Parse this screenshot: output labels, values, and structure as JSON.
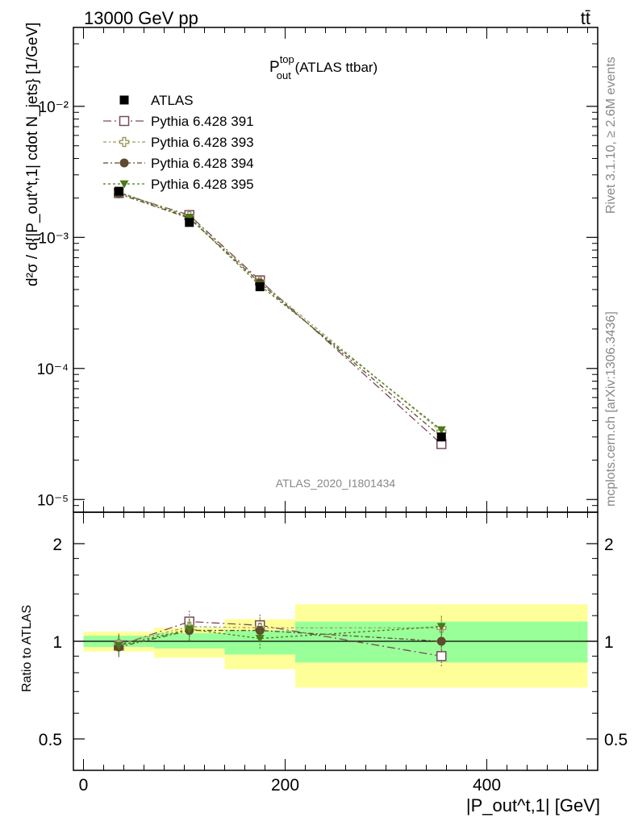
{
  "header": {
    "left": "13000 GeV pp",
    "right": "tt̄"
  },
  "side": {
    "rivet": "Rivet 3.1.10, ≥ 2.6M events",
    "mcplots": "mcplots.cern.ch [arXiv:1306.3436]"
  },
  "main": {
    "title_main": "P",
    "title_sup": "top",
    "title_sub": "out",
    "title_rest": " (ATLAS ttbar)",
    "watermark": "ATLAS_2020_I1801434",
    "ylabel": "d²σ / d{|P_out^t,1| cdot N_jets} [1/GeV]",
    "yticks": [
      "10⁻⁵",
      "10⁻⁴",
      "10⁻³",
      "10⁻²"
    ]
  },
  "ratio": {
    "ylabel": "Ratio to ATLAS",
    "yticks": [
      "0.5",
      "1",
      "2"
    ]
  },
  "xaxis": {
    "label": "|P_out^t,1| [GeV]",
    "ticks": [
      "0",
      "200",
      "400"
    ]
  },
  "legend": [
    {
      "label": "ATLAS",
      "marker": "filled-square",
      "color": "#000000"
    },
    {
      "label": "Pythia 6.428 391",
      "marker": "open-square",
      "color": "#7a4a5a"
    },
    {
      "label": "Pythia 6.428 393",
      "marker": "open-cross",
      "color": "#9c9a5a"
    },
    {
      "label": "Pythia 6.428 394",
      "marker": "filled-circle",
      "color": "#5e4a2e"
    },
    {
      "label": "Pythia 6.428 395",
      "marker": "filled-triangle",
      "color": "#4a7a1a"
    }
  ],
  "chart_data": {
    "type": "scatter",
    "x_bins": [
      [
        0,
        70
      ],
      [
        70,
        140
      ],
      [
        140,
        210
      ],
      [
        210,
        500
      ]
    ],
    "x": [
      35,
      105,
      175,
      355
    ],
    "xlim": [
      -10,
      510
    ],
    "ylim": [
      8e-06,
      0.04
    ],
    "yscale": "log",
    "ratio_ylim": [
      0.4,
      2.5
    ],
    "ratio_yscale": "log",
    "data": {
      "name": "ATLAS",
      "values": [
        0.00225,
        0.0013,
        0.00042,
        3e-05
      ]
    },
    "series": [
      {
        "name": "Pythia 6.428 391",
        "values": [
          0.00218,
          0.00148,
          0.00047,
          2.65e-05
        ],
        "ratio": [
          0.97,
          1.15,
          1.12,
          0.9
        ]
      },
      {
        "name": "Pythia 6.428 393",
        "values": [
          0.00222,
          0.00145,
          0.00046,
          3.3e-05
        ],
        "ratio": [
          0.98,
          1.11,
          1.1,
          1.1
        ]
      },
      {
        "name": "Pythia 6.428 394",
        "values": [
          0.00215,
          0.0014,
          0.00045,
          3e-05
        ],
        "ratio": [
          0.96,
          1.08,
          1.08,
          1.0
        ]
      },
      {
        "name": "Pythia 6.428 395",
        "values": [
          0.0022,
          0.00142,
          0.00043,
          3.4e-05
        ],
        "ratio": [
          0.97,
          1.09,
          1.02,
          1.11
        ]
      }
    ],
    "error_bands": {
      "green": [
        [
          0.96,
          1.04
        ],
        [
          0.95,
          1.06
        ],
        [
          0.91,
          1.08
        ],
        [
          0.86,
          1.15
        ]
      ],
      "yellow": [
        [
          0.93,
          1.07
        ],
        [
          0.89,
          1.1
        ],
        [
          0.82,
          1.17
        ],
        [
          0.72,
          1.3
        ]
      ]
    },
    "grid": false,
    "legend_position": "top-left"
  }
}
